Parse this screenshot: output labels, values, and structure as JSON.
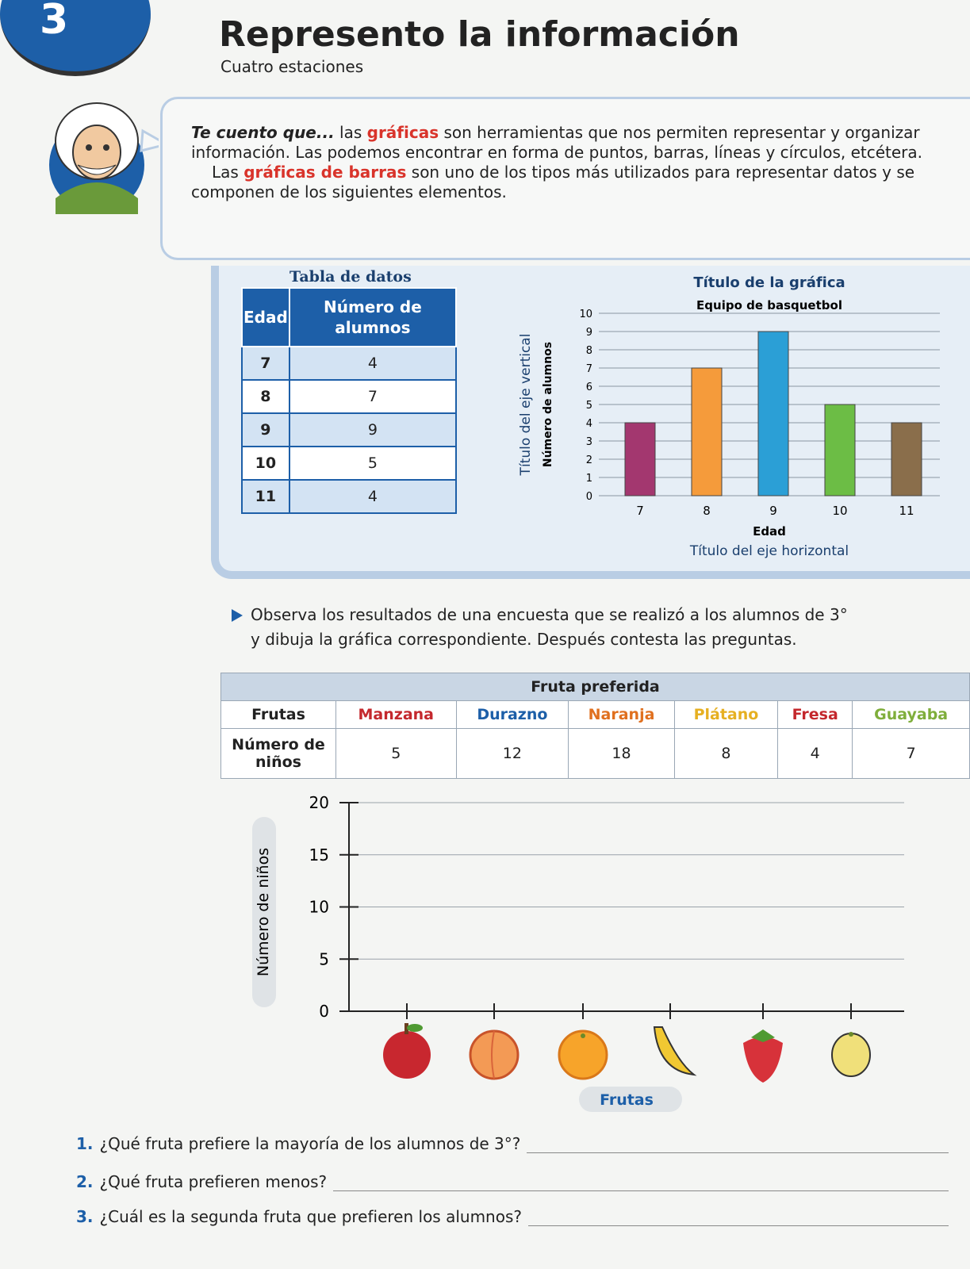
{
  "header": {
    "number": "3",
    "title": "Represento la información",
    "subtitle": "Cuatro estaciones"
  },
  "intro": {
    "paragraphs": [
      [
        {
          "text": "Te cuento que...",
          "style": "lead"
        },
        {
          "text": " las "
        },
        {
          "text": "gráficas",
          "style": "highlight"
        },
        {
          "text": " son herramientas que nos permiten representar y organizar información. Las podemos encontrar en forma de puntos, barras, líneas y círculos, etcétera."
        }
      ],
      [
        {
          "text": "Las "
        },
        {
          "text": "gráficas de barras",
          "style": "highlight"
        },
        {
          "text": " son uno de los tipos más utilizados para representar datos y se componen de los siguientes elementos."
        }
      ]
    ]
  },
  "example_table": {
    "title": "Tabla de datos",
    "headers": [
      "Edad",
      "Número de alumnos"
    ],
    "rows": [
      [
        7,
        4
      ],
      [
        8,
        7
      ],
      [
        9,
        9
      ],
      [
        10,
        5
      ],
      [
        11,
        4
      ]
    ]
  },
  "chart_data": {
    "type": "bar",
    "title": "Título de la gráfica",
    "subtitle": "Equipo de basquetbol",
    "y_axis_caption": "Título del eje vertical",
    "y_label": "Número de alumnos",
    "x_label": "Edad",
    "x_axis_caption": "Título del eje horizontal",
    "categories": [
      "7",
      "8",
      "9",
      "10",
      "11"
    ],
    "values": [
      4,
      7,
      9,
      5,
      4
    ],
    "colors": [
      "#a3376f",
      "#f59b3b",
      "#2b9fd6",
      "#6cbd45",
      "#8a6e4b"
    ],
    "ylim": [
      0,
      10
    ],
    "yticks": [
      0,
      1,
      2,
      3,
      4,
      5,
      6,
      7,
      8,
      9,
      10
    ],
    "grid": true
  },
  "instruction": [
    "Observa los resultados de una encuesta que se realizó a los alumnos de 3°",
    "y dibuja la gráfica correspondiente. Después contesta las preguntas."
  ],
  "fruit_table": {
    "title": "Fruta preferida",
    "row_headers": [
      "Frutas",
      "Número de niños"
    ],
    "fruits": [
      "Manzana",
      "Durazno",
      "Naranja",
      "Plátano",
      "Fresa",
      "Guayaba"
    ],
    "fruit_colors": [
      "#c4282d",
      "#1d5fa8",
      "#e0701f",
      "#e6b022",
      "#c4282d",
      "#7fae3b"
    ],
    "counts": [
      5,
      12,
      18,
      8,
      4,
      7
    ]
  },
  "blank_chart": {
    "y_label": "Número de niños",
    "x_label": "Frutas",
    "ylim": [
      0,
      20
    ],
    "yticks": [
      0,
      5,
      10,
      15,
      20
    ]
  },
  "questions": [
    {
      "number": "1.",
      "text": "¿Qué fruta prefiere la mayoría de los alumnos de 3°?"
    },
    {
      "number": "2.",
      "text": "¿Qué fruta prefieren menos?"
    },
    {
      "number": "3.",
      "text": "¿Cuál es la segunda fruta que prefieren los alumnos?"
    }
  ]
}
